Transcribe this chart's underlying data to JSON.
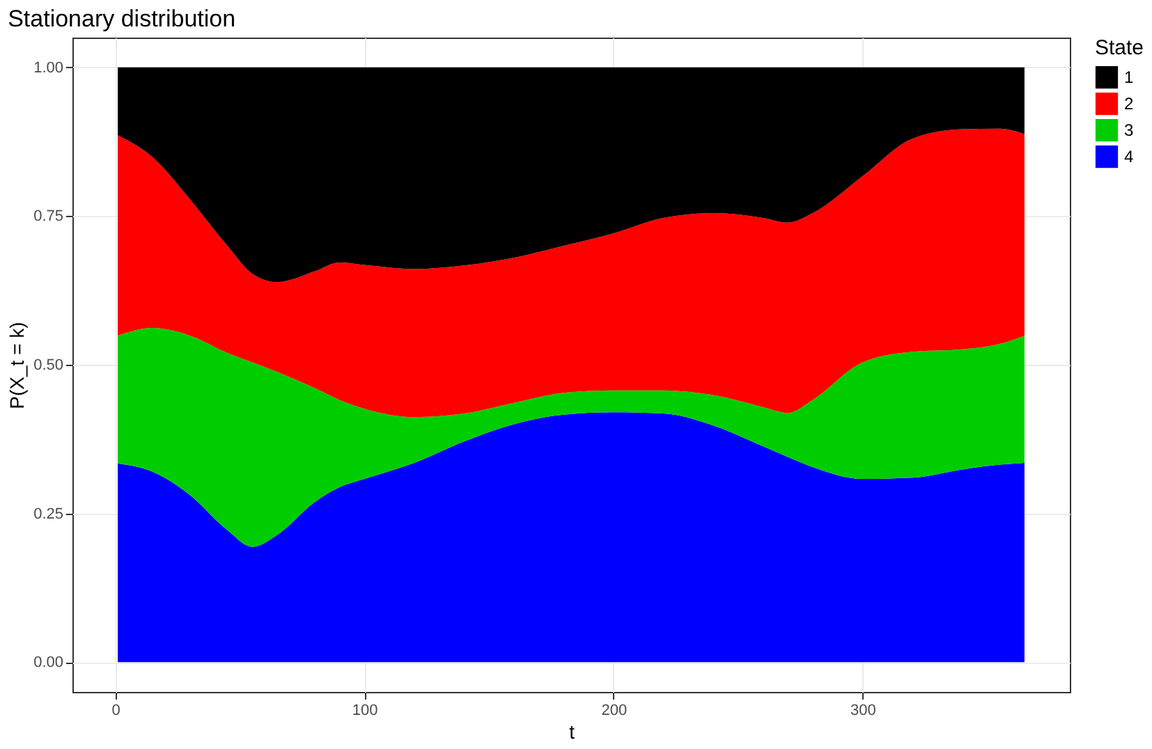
{
  "chart_data": {
    "type": "area",
    "title": "Stationary distribution",
    "xlabel": "t",
    "ylabel": "P(X_t = k)",
    "legend_title": "State",
    "stacked": true,
    "x": [
      1,
      15,
      30,
      45,
      55,
      65,
      80,
      90,
      100,
      120,
      140,
      160,
      180,
      200,
      220,
      240,
      260,
      270,
      280,
      300,
      320,
      340,
      355,
      365
    ],
    "series": [
      {
        "name": "4",
        "color": "#0000ff",
        "values": [
          0.334,
          0.32,
          0.281,
          0.222,
          0.194,
          0.214,
          0.269,
          0.294,
          0.308,
          0.335,
          0.371,
          0.4,
          0.416,
          0.42,
          0.418,
          0.398,
          0.363,
          0.345,
          0.328,
          0.308,
          0.31,
          0.324,
          0.332,
          0.335
        ]
      },
      {
        "name": "3",
        "color": "#00cd00",
        "values": [
          0.215,
          0.242,
          0.268,
          0.298,
          0.31,
          0.274,
          0.192,
          0.147,
          0.118,
          0.077,
          0.047,
          0.036,
          0.037,
          0.037,
          0.039,
          0.051,
          0.066,
          0.074,
          0.113,
          0.196,
          0.212,
          0.202,
          0.203,
          0.214
        ]
      },
      {
        "name": "2",
        "color": "#ff0000",
        "values": [
          0.337,
          0.287,
          0.229,
          0.18,
          0.149,
          0.151,
          0.196,
          0.231,
          0.242,
          0.249,
          0.249,
          0.244,
          0.247,
          0.264,
          0.29,
          0.306,
          0.318,
          0.32,
          0.314,
          0.313,
          0.358,
          0.37,
          0.362,
          0.339
        ]
      },
      {
        "name": "1",
        "color": "#000000",
        "values": [
          0.114,
          0.151,
          0.222,
          0.3,
          0.347,
          0.361,
          0.343,
          0.328,
          0.332,
          0.339,
          0.333,
          0.32,
          0.3,
          0.279,
          0.253,
          0.245,
          0.253,
          0.261,
          0.245,
          0.183,
          0.12,
          0.104,
          0.103,
          0.112
        ]
      }
    ],
    "xlim": [
      -17.2,
      383.2
    ],
    "xticks": [
      0,
      100,
      200,
      300
    ],
    "ylim": [
      -0.05,
      1.05
    ],
    "yticks": [
      {
        "value": 0,
        "label": "0.00"
      },
      {
        "value": 0.25,
        "label": "0.25"
      },
      {
        "value": 0.5,
        "label": "0.50"
      },
      {
        "value": 0.75,
        "label": "0.75"
      },
      {
        "value": 1,
        "label": "1.00"
      }
    ],
    "grid": true,
    "legend": "right"
  }
}
